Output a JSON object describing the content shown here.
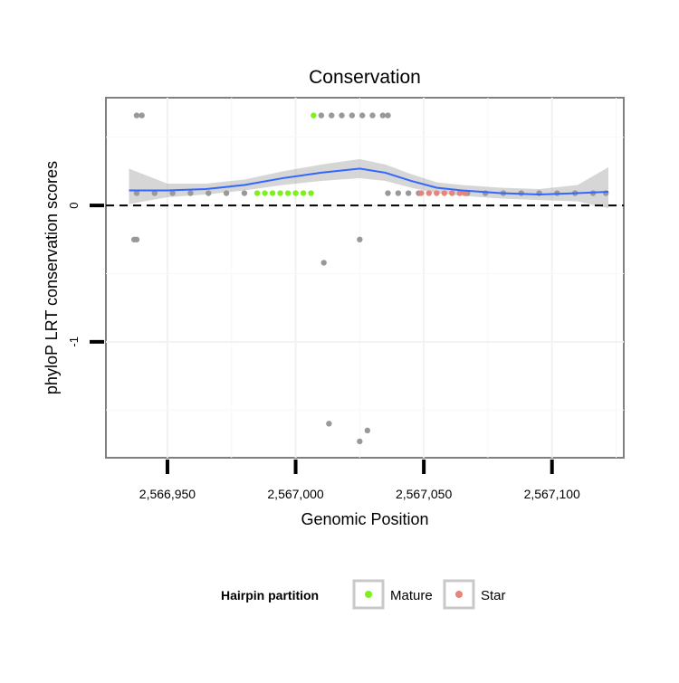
{
  "chart_data": {
    "type": "scatter",
    "title": "Conservation",
    "xlabel": "Genomic Position",
    "ylabel": "phyloP LRT conservation scores",
    "xlim": [
      2566926,
      2567128
    ],
    "ylim": [
      -1.85,
      0.79
    ],
    "xticks": [
      2566950,
      2567000,
      2567050,
      2567100
    ],
    "xtick_labels": [
      "2,566,950",
      "2,567,000",
      "2,567,050",
      "2,567,100"
    ],
    "yticks": [
      0,
      -1
    ],
    "ytick_labels": [
      "0",
      "-1"
    ],
    "reference_line": {
      "y": 0,
      "style": "dashed"
    },
    "grid": true,
    "legend": {
      "title": "Hairpin partition",
      "position": "bottom",
      "entries": [
        {
          "name": "Mature",
          "color": "#7cf21a"
        },
        {
          "name": "Star",
          "color": "#e8847a"
        }
      ]
    },
    "series": [
      {
        "name": "Other",
        "color": "#999999",
        "points": [
          [
            2566938,
            0.66
          ],
          [
            2566940,
            0.66
          ],
          [
            2566937,
            -0.25
          ],
          [
            2566938,
            -0.25
          ],
          [
            2566938,
            0.09
          ],
          [
            2566945,
            0.09
          ],
          [
            2566952,
            0.09
          ],
          [
            2566959,
            0.09
          ],
          [
            2566966,
            0.09
          ],
          [
            2566973,
            0.09
          ],
          [
            2566980,
            0.09
          ],
          [
            2567010,
            0.66
          ],
          [
            2567014,
            0.66
          ],
          [
            2567018,
            0.66
          ],
          [
            2567022,
            0.66
          ],
          [
            2567026,
            0.66
          ],
          [
            2567030,
            0.66
          ],
          [
            2567034,
            0.66
          ],
          [
            2567036,
            0.66
          ],
          [
            2567011,
            -0.42
          ],
          [
            2567013,
            -1.6
          ],
          [
            2567025,
            -0.25
          ],
          [
            2567025,
            -1.73
          ],
          [
            2567028,
            -1.65
          ],
          [
            2567036,
            0.09
          ],
          [
            2567040,
            0.09
          ],
          [
            2567044,
            0.09
          ],
          [
            2567048,
            0.09
          ],
          [
            2567067,
            0.09
          ],
          [
            2567074,
            0.09
          ],
          [
            2567081,
            0.09
          ],
          [
            2567088,
            0.09
          ],
          [
            2567095,
            0.09
          ],
          [
            2567102,
            0.09
          ],
          [
            2567109,
            0.09
          ],
          [
            2567116,
            0.09
          ],
          [
            2567121,
            0.09
          ]
        ]
      },
      {
        "name": "Mature",
        "color": "#7cf21a",
        "points": [
          [
            2566985,
            0.09
          ],
          [
            2566988,
            0.09
          ],
          [
            2566991,
            0.09
          ],
          [
            2566994,
            0.09
          ],
          [
            2566997,
            0.09
          ],
          [
            2567000,
            0.09
          ],
          [
            2567003,
            0.09
          ],
          [
            2567006,
            0.09
          ],
          [
            2567007,
            0.66
          ]
        ]
      },
      {
        "name": "Star",
        "color": "#e8847a",
        "points": [
          [
            2567049,
            0.09
          ],
          [
            2567052,
            0.09
          ],
          [
            2567055,
            0.09
          ],
          [
            2567058,
            0.09
          ],
          [
            2567061,
            0.09
          ],
          [
            2567064,
            0.09
          ],
          [
            2567066,
            0.09
          ]
        ]
      }
    ],
    "smooth": {
      "method": "loess",
      "color": "#3366ff",
      "x": [
        2566935,
        2566950,
        2566965,
        2566980,
        2566995,
        2567010,
        2567025,
        2567035,
        2567045,
        2567055,
        2567065,
        2567080,
        2567095,
        2567110,
        2567122
      ],
      "y": [
        0.11,
        0.11,
        0.12,
        0.15,
        0.2,
        0.24,
        0.27,
        0.24,
        0.18,
        0.13,
        0.11,
        0.09,
        0.08,
        0.09,
        0.1
      ],
      "ci_low": [
        0.01,
        0.06,
        0.08,
        0.11,
        0.15,
        0.18,
        0.2,
        0.18,
        0.13,
        0.09,
        0.07,
        0.05,
        0.04,
        0.03,
        -0.02
      ],
      "ci_high": [
        0.27,
        0.16,
        0.16,
        0.19,
        0.25,
        0.3,
        0.34,
        0.3,
        0.23,
        0.17,
        0.15,
        0.13,
        0.12,
        0.15,
        0.28
      ]
    }
  }
}
